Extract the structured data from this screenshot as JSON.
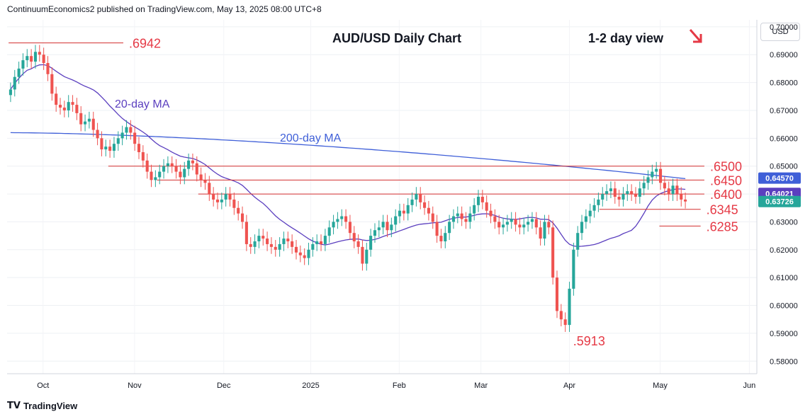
{
  "header": {
    "publisher": "ContinuumEconomics2 published on TradingView.com, May 13, 2025 08:00 UTC+8"
  },
  "brand": {
    "name": "TradingView"
  },
  "currency": "USD",
  "colors": {
    "up": "#26a69a",
    "down": "#ef5350",
    "ma20": "#5b3fbf",
    "ma200": "#3f5fd8",
    "level": "#d32f2f",
    "annotation": "#e53945"
  },
  "chart_data": {
    "type": "candlestick",
    "title": "AUD/USD Daily Chart",
    "subtitle": "1-2 day view",
    "x_labels": [
      "Oct",
      "Nov",
      "Dec",
      "2025",
      "Feb",
      "Mar",
      "Apr",
      "May",
      "Jun"
    ],
    "y_ticks": [
      "0.70000",
      "0.69000",
      "0.68000",
      "0.67000",
      "0.66000",
      "0.65000",
      "0.64000",
      "0.63000",
      "0.62000",
      "0.61000",
      "0.60000",
      "0.59000",
      "0.58000"
    ],
    "ylim": [
      0.5755,
      0.7025
    ],
    "price_tags": [
      {
        "label": "0.64570",
        "value": 0.6457,
        "color": "#3f5fd8"
      },
      {
        "label": "0.64021",
        "value": 0.6402,
        "color": "#5b3fbf"
      },
      {
        "label": "0.63726",
        "value": 0.6373,
        "color": "#26a69a"
      }
    ],
    "ma_labels": {
      "ma20": "20-day MA",
      "ma200": "200-day MA"
    },
    "levels": [
      {
        "label": ".6942",
        "value": 0.6942
      },
      {
        "label": ".6500",
        "value": 0.65
      },
      {
        "label": ".6450",
        "value": 0.645
      },
      {
        "label": ".6400",
        "value": 0.64
      },
      {
        "label": ".6345",
        "value": 0.6345
      },
      {
        "label": ".6285",
        "value": 0.6285
      }
    ],
    "low_label": {
      "label": ".5913",
      "value": 0.5913
    },
    "grid": true,
    "close_series": [
      0.6775,
      0.682,
      0.685,
      0.688,
      0.6895,
      0.6875,
      0.691,
      0.69,
      0.687,
      0.683,
      0.676,
      0.672,
      0.671,
      0.67,
      0.673,
      0.672,
      0.669,
      0.665,
      0.666,
      0.667,
      0.663,
      0.66,
      0.656,
      0.657,
      0.6555,
      0.658,
      0.66,
      0.662,
      0.664,
      0.662,
      0.658,
      0.655,
      0.652,
      0.648,
      0.645,
      0.646,
      0.648,
      0.65,
      0.651,
      0.65,
      0.648,
      0.646,
      0.649,
      0.652,
      0.651,
      0.647,
      0.645,
      0.644,
      0.64,
      0.638,
      0.637,
      0.638,
      0.64,
      0.638,
      0.635,
      0.633,
      0.63,
      0.622,
      0.621,
      0.623,
      0.625,
      0.624,
      0.622,
      0.621,
      0.62,
      0.622,
      0.624,
      0.623,
      0.621,
      0.619,
      0.618,
      0.617,
      0.62,
      0.622,
      0.623,
      0.622,
      0.625,
      0.628,
      0.63,
      0.631,
      0.632,
      0.63,
      0.626,
      0.623,
      0.621,
      0.615,
      0.62,
      0.625,
      0.627,
      0.628,
      0.63,
      0.627,
      0.629,
      0.632,
      0.634,
      0.633,
      0.636,
      0.638,
      0.64,
      0.637,
      0.635,
      0.633,
      0.63,
      0.625,
      0.623,
      0.626,
      0.63,
      0.632,
      0.633,
      0.631,
      0.63,
      0.633,
      0.636,
      0.639,
      0.637,
      0.634,
      0.632,
      0.63,
      0.628,
      0.629,
      0.63,
      0.631,
      0.629,
      0.628,
      0.629,
      0.63,
      0.631,
      0.628,
      0.624,
      0.63,
      0.628,
      0.61,
      0.598,
      0.595,
      0.593,
      0.606,
      0.62,
      0.626,
      0.63,
      0.632,
      0.634,
      0.636,
      0.638,
      0.64,
      0.641,
      0.642,
      0.639,
      0.638,
      0.64,
      0.641,
      0.64,
      0.639,
      0.642,
      0.644,
      0.646,
      0.648,
      0.649,
      0.644,
      0.642,
      0.64,
      0.643,
      0.64,
      0.638,
      0.6373
    ]
  }
}
